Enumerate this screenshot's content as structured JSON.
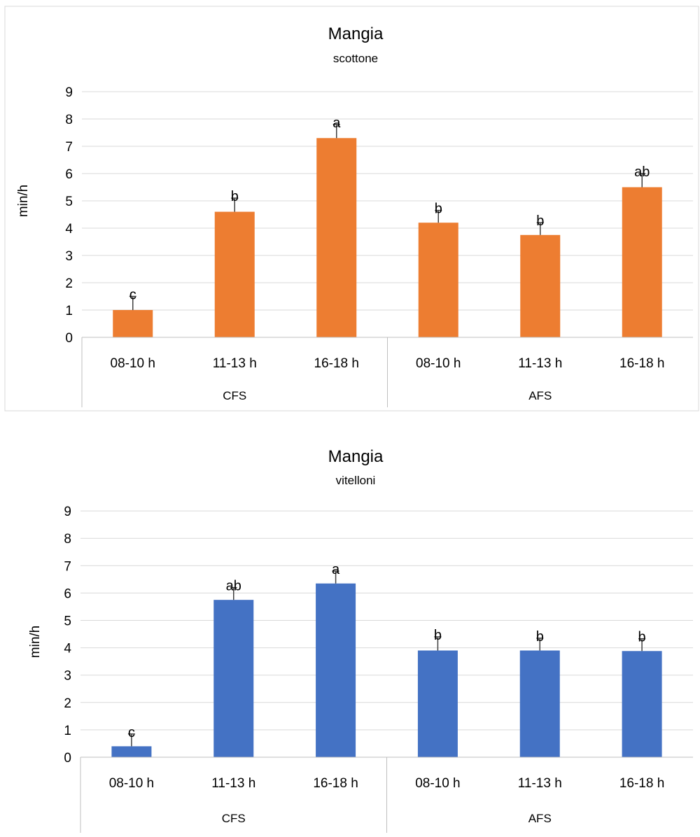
{
  "chart_data": [
    {
      "type": "bar",
      "title": "Mangia",
      "subtitle": "scottone",
      "ylabel": "min/h",
      "ylim": [
        0,
        9
      ],
      "yticks": [
        "0",
        "1",
        "2",
        "3",
        "4",
        "5",
        "6",
        "7",
        "8",
        "9"
      ],
      "grid": true,
      "color": "#ED7D31",
      "categories": [
        "08-10 h",
        "11-13 h",
        "16-18 h",
        "08-10 h",
        "11-13 h",
        "16-18 h"
      ],
      "groups": [
        {
          "label": "CFS",
          "span": 3
        },
        {
          "label": "AFS",
          "span": 3
        }
      ],
      "values": [
        1.0,
        4.6,
        7.3,
        4.2,
        3.75,
        5.5
      ],
      "errors": [
        0.5,
        0.5,
        0.5,
        0.45,
        0.45,
        0.5
      ],
      "labels": [
        "c",
        "b",
        "a",
        "b",
        "b",
        "ab"
      ]
    },
    {
      "type": "bar",
      "title": "Mangia",
      "subtitle": "vitelloni",
      "ylabel": "min/h",
      "ylim": [
        0,
        9
      ],
      "yticks": [
        "0",
        "1",
        "2",
        "3",
        "4",
        "5",
        "6",
        "7",
        "8",
        "9"
      ],
      "grid": true,
      "color": "#4472C4",
      "categories": [
        "08-10 h",
        "11-13 h",
        "16-18 h",
        "08-10 h",
        "11-13 h",
        "16-18 h"
      ],
      "groups": [
        {
          "label": "CFS",
          "span": 3
        },
        {
          "label": "AFS",
          "span": 3
        }
      ],
      "values": [
        0.4,
        5.75,
        6.35,
        3.9,
        3.9,
        3.88
      ],
      "errors": [
        0.45,
        0.45,
        0.45,
        0.5,
        0.45,
        0.45
      ],
      "labels": [
        "c",
        "ab",
        "a",
        "b",
        "b",
        "b"
      ]
    }
  ]
}
